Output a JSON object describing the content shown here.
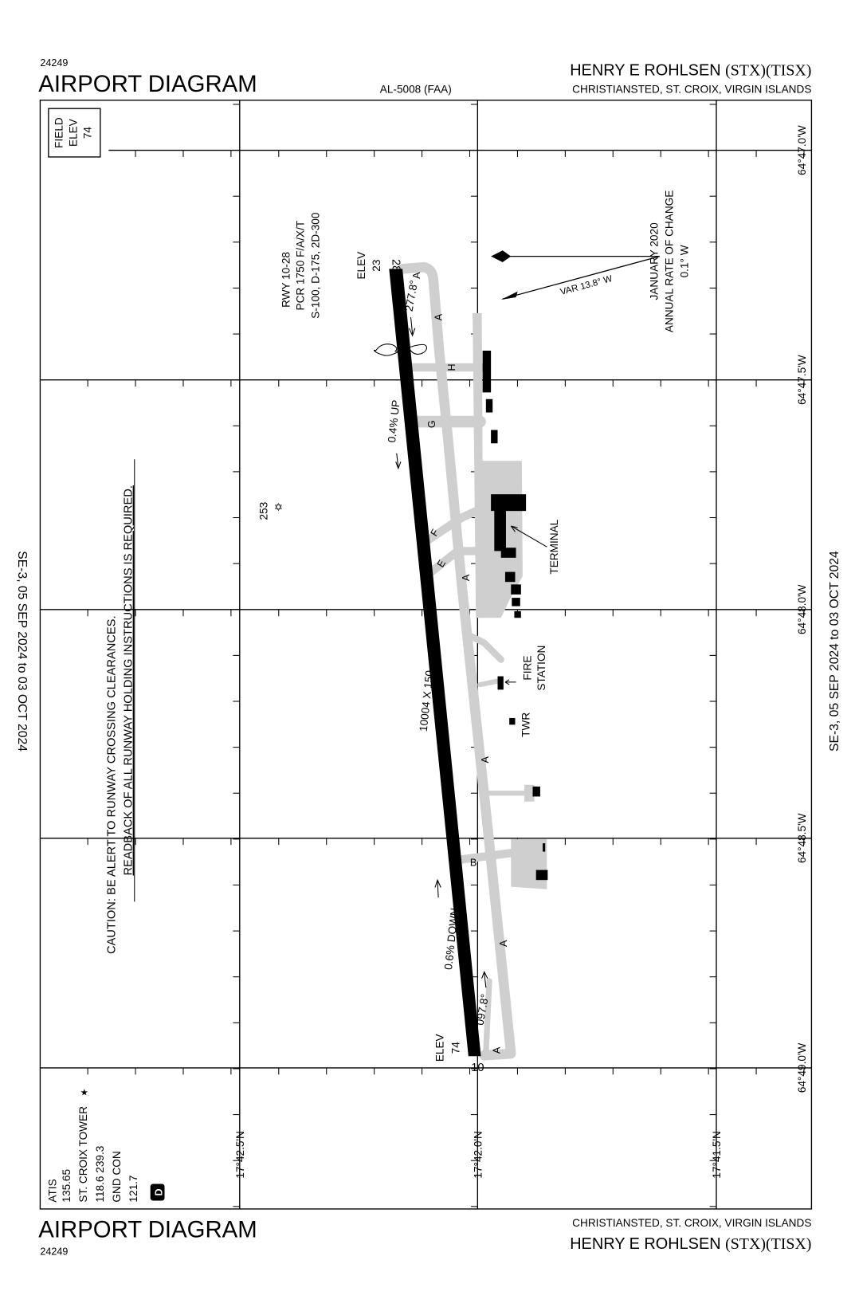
{
  "header": {
    "chart_number": "24249",
    "title": "AIRPORT DIAGRAM",
    "procedure_id": "AL-5008 (FAA)",
    "airport_name": "HENRY E ROHLSEN",
    "airport_ids": "(STX)(TISX)",
    "location": "CHRISTIANSTED, ST. CROIX, VIRGIN ISLANDS"
  },
  "footer": {
    "chart_number": "24249",
    "title": "AIRPORT DIAGRAM",
    "airport_name": "HENRY E ROHLSEN",
    "airport_ids": "(STX)(TISX)",
    "location": "CHRISTIANSTED, ST. CROIX, VIRGIN ISLANDS"
  },
  "effective_dates": "SE-3,  05 SEP 2024  to  03 OCT 2024",
  "field_elev": {
    "line1": "FIELD",
    "line2": "ELEV",
    "value": "74"
  },
  "longitudes": [
    "64°47.0'W",
    "64°47.5'W",
    "64°48.0'W",
    "64°48.5'W",
    "64°49.0'W"
  ],
  "latitudes": [
    "17°42.5'N",
    "17°42.0'N",
    "17°41.5'N"
  ],
  "runway": {
    "info": [
      "RWY 10-28",
      "PCR 1750 F/A/X/T",
      "S-100, D-175, 2D-300"
    ],
    "dimensions": "10004 X 150",
    "end_28": {
      "number": "28",
      "elev_label": "ELEV",
      "elev": "23",
      "heading": "277.8°"
    },
    "end_10": {
      "number": "10",
      "elev_label": "ELEV",
      "elev": "74",
      "heading": "097.8°"
    },
    "slope_up": "0.4% UP",
    "slope_down": "0.6% DOWN"
  },
  "taxiways": {
    "A": "A",
    "B": "B",
    "E": "E",
    "F": "F",
    "G": "G",
    "H": "H"
  },
  "obstacle": {
    "elevation": "253",
    "icon": "star-obstacle-icon"
  },
  "facilities": {
    "terminal": "TERMINAL",
    "fire1": "FIRE",
    "fire2": "STATION",
    "tower": "TWR"
  },
  "caution": {
    "line1": "CAUTION: BE ALERT TO RUNWAY CROSSING CLEARANCES.",
    "line2": "READBACK OF ALL RUNWAY HOLDING INSTRUCTIONS IS REQUIRED."
  },
  "magnetic": {
    "var": "VAR 13.8°  W",
    "line1": "JANUARY 2020",
    "line2": "ANNUAL RATE OF CHANGE",
    "line3": "0.1° W"
  },
  "comms": {
    "atis_label": "ATIS",
    "atis_freq": "135.65",
    "tower_label": "ST. CROIX TOWER",
    "tower_freq": "118.6  239.3",
    "gnd_label": "GND CON",
    "gnd_freq": "121.7",
    "badge": "D"
  },
  "colors": {
    "pavement": "#cfcfcf",
    "runway": "#000000",
    "buildings": "#000000"
  }
}
